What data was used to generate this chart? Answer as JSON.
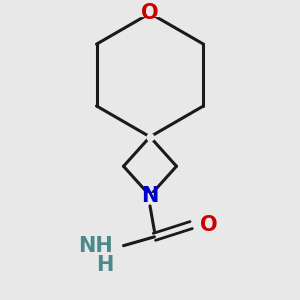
{
  "background_color": "#e8e8e8",
  "line_color": "#1a1a1a",
  "O_color": "#cc0000",
  "N_color": "#0000cc",
  "NH2_color": "#4a8a8a",
  "O_label": "O",
  "N_label": "N",
  "NH2_label": "NH",
  "H2_label": "H",
  "O2_label": "O",
  "line_width": 2.2,
  "font_size": 15
}
